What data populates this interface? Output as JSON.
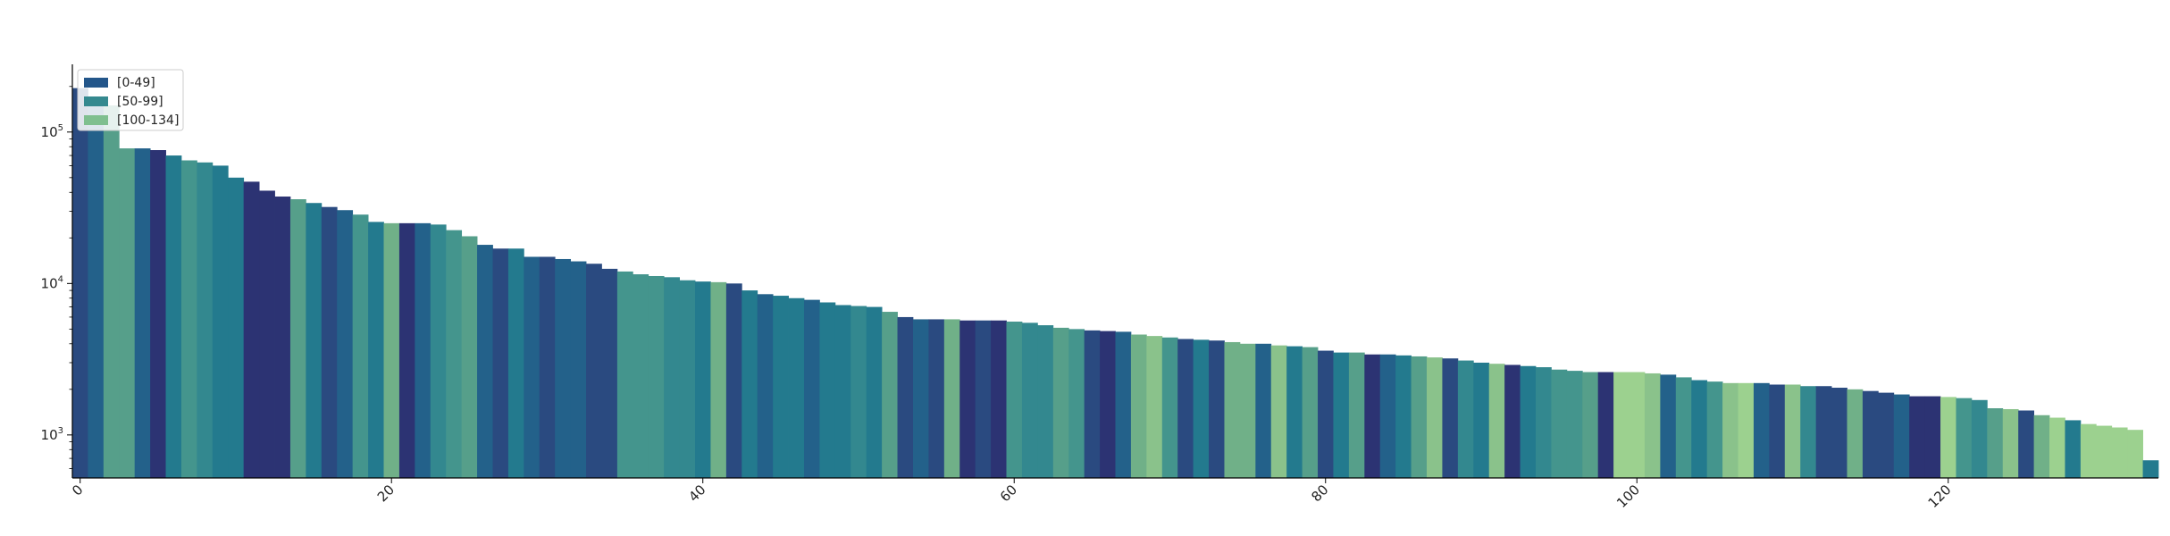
{
  "chart_data": {
    "type": "bar",
    "title": "",
    "xlabel": "",
    "ylabel": "",
    "y_scale": "log",
    "ylim": [
      520,
      280000
    ],
    "xlim": [
      -0.5,
      133.5
    ],
    "grid": false,
    "legend_placement": "top-left",
    "x_ticks": [
      {
        "value": 0,
        "label": "0"
      },
      {
        "value": 20,
        "label": "20"
      },
      {
        "value": 40,
        "label": "40"
      },
      {
        "value": 60,
        "label": "60"
      },
      {
        "value": 80,
        "label": "80"
      },
      {
        "value": 100,
        "label": "100"
      },
      {
        "value": 120,
        "label": "120"
      }
    ],
    "y_ticks": [
      {
        "value": 1000,
        "label_base": "10",
        "label_exp": "3"
      },
      {
        "value": 10000,
        "label_base": "10",
        "label_exp": "4"
      },
      {
        "value": 100000,
        "label_base": "10",
        "label_exp": "5"
      }
    ],
    "legend": [
      {
        "label": "[0-49]",
        "color": "#23568a"
      },
      {
        "label": "[50-99]",
        "color": "#35898f"
      },
      {
        "label": "[100-134]",
        "color": "#7fbf8f"
      }
    ],
    "palette": [
      "#2c3373",
      "#2a4a80",
      "#23618a",
      "#237a8e",
      "#33888f",
      "#44958d",
      "#569f8a",
      "#70b088",
      "#8ac28b",
      "#9cd18f"
    ],
    "values": [
      195000,
      165000,
      150000,
      78000,
      78000,
      76000,
      70000,
      65000,
      63000,
      60000,
      50000,
      47000,
      41000,
      37500,
      36000,
      34000,
      32000,
      30500,
      28500,
      25500,
      25000,
      25000,
      25000,
      24500,
      22500,
      20500,
      18000,
      17000,
      17000,
      15000,
      15000,
      14500,
      14000,
      13500,
      12500,
      12000,
      11500,
      11200,
      11000,
      10500,
      10300,
      10200,
      10000,
      9000,
      8500,
      8300,
      8000,
      7800,
      7500,
      7200,
      7100,
      7000,
      6500,
      6000,
      5800,
      5800,
      5800,
      5700,
      5700,
      5700,
      5600,
      5500,
      5300,
      5100,
      5000,
      4900,
      4850,
      4800,
      4600,
      4500,
      4400,
      4300,
      4250,
      4200,
      4100,
      4000,
      4000,
      3900,
      3850,
      3800,
      3600,
      3500,
      3500,
      3400,
      3400,
      3350,
      3300,
      3250,
      3200,
      3100,
      3000,
      2950,
      2900,
      2850,
      2800,
      2700,
      2650,
      2600,
      2600,
      2600,
      2600,
      2550,
      2500,
      2400,
      2300,
      2250,
      2200,
      2200,
      2200,
      2150,
      2150,
      2100,
      2100,
      2050,
      2000,
      1950,
      1900,
      1850,
      1800,
      1800,
      1780,
      1750,
      1700,
      1500,
      1480,
      1450,
      1350,
      1300,
      1250,
      1180,
      1150,
      1120,
      1080,
      680
    ],
    "color_index": [
      1,
      2,
      6,
      6,
      2,
      0,
      3,
      5,
      4,
      3,
      3,
      0,
      0,
      0,
      6,
      3,
      1,
      2,
      5,
      3,
      7,
      0,
      2,
      4,
      5,
      6,
      2,
      1,
      3,
      2,
      1,
      2,
      2,
      1,
      1,
      5,
      5,
      5,
      4,
      4,
      3,
      7,
      1,
      3,
      2,
      3,
      3,
      2,
      3,
      3,
      4,
      3,
      6,
      1,
      2,
      1,
      7,
      0,
      1,
      0,
      5,
      4,
      4,
      6,
      5,
      1,
      0,
      2,
      7,
      8,
      5,
      1,
      3,
      1,
      7,
      7,
      2,
      8,
      3,
      6,
      1,
      3,
      6,
      0,
      2,
      3,
      6,
      8,
      1,
      4,
      3,
      8,
      0,
      3,
      4,
      5,
      5,
      6,
      0,
      9,
      9,
      8,
      2,
      5,
      3,
      5,
      8,
      9,
      2,
      1,
      8,
      4,
      1,
      1,
      7,
      1,
      1,
      2,
      0,
      0,
      9,
      5,
      4,
      6,
      8,
      1,
      7,
      9,
      3,
      9,
      9,
      9,
      9,
      3
    ]
  }
}
